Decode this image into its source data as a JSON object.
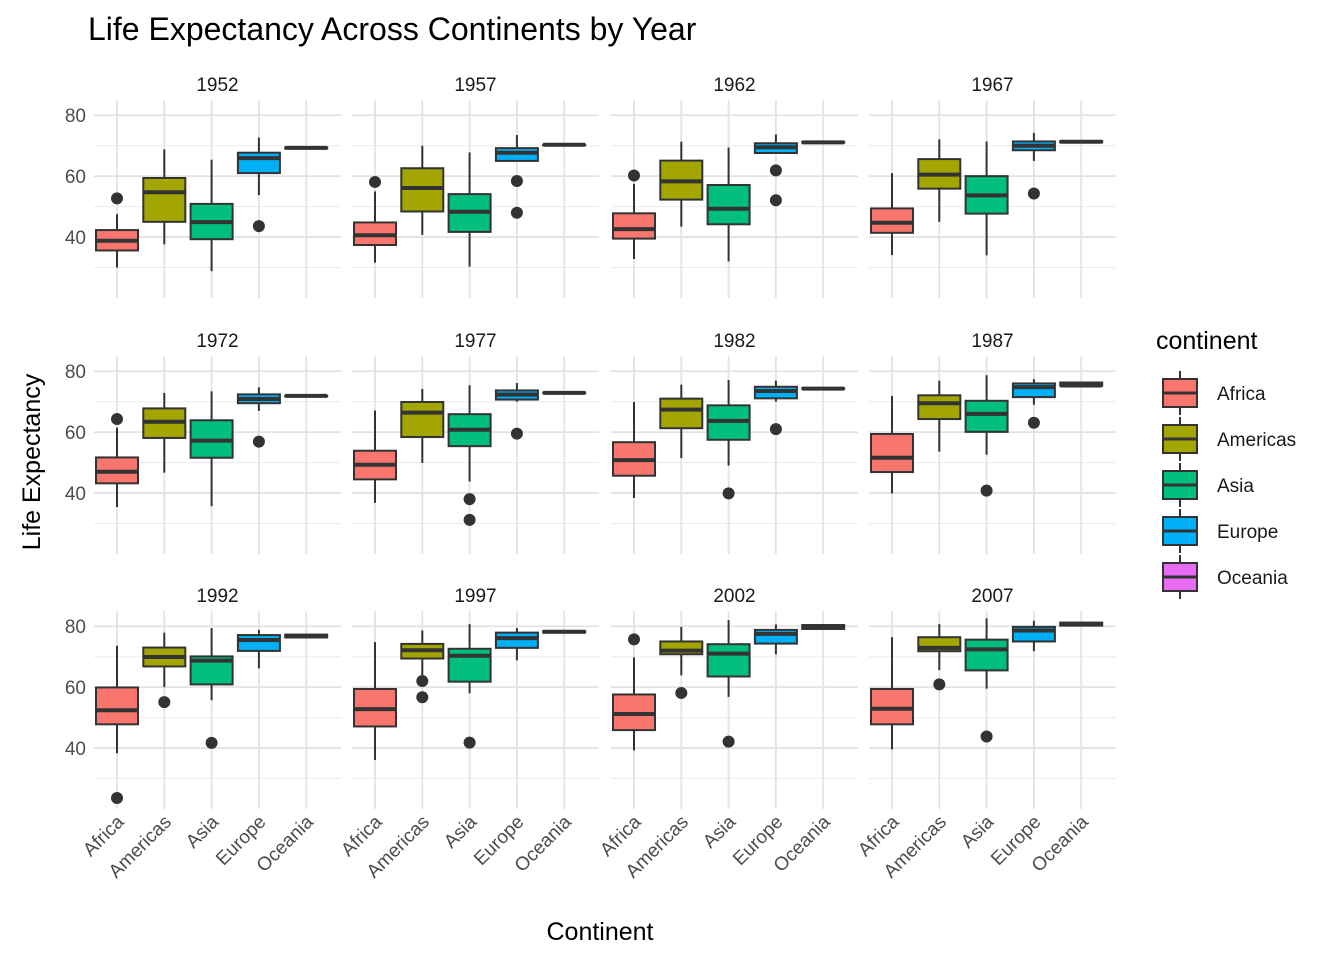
{
  "chart_data": {
    "type": "boxplot",
    "title": "Life Expectancy Across Continents by Year",
    "xlabel": "Continent",
    "ylabel": "Life Expectancy",
    "ylim": [
      20,
      85
    ],
    "y_ticks": [
      40,
      60,
      80
    ],
    "grid": true,
    "legend": {
      "title": "continent",
      "position": "right",
      "entries": [
        {
          "label": "Africa",
          "color": "#F8766D"
        },
        {
          "label": "Americas",
          "color": "#A3A500"
        },
        {
          "label": "Asia",
          "color": "#00BF7D"
        },
        {
          "label": "Europe",
          "color": "#00B0F6"
        },
        {
          "label": "Oceania",
          "color": "#E76BF3"
        }
      ]
    },
    "categories": [
      "Africa",
      "Americas",
      "Asia",
      "Europe",
      "Oceania"
    ],
    "panels": [
      {
        "year": "1952",
        "boxes": [
          {
            "category": "Africa",
            "low": 30.0,
            "q1": 35.6,
            "median": 38.8,
            "q3": 42.3,
            "high": 47.5,
            "outliers": [
              52.7
            ]
          },
          {
            "category": "Americas",
            "low": 37.6,
            "q1": 45.0,
            "median": 54.7,
            "q3": 59.4,
            "high": 68.8,
            "outliers": []
          },
          {
            "category": "Asia",
            "low": 28.8,
            "q1": 39.3,
            "median": 44.9,
            "q3": 50.9,
            "high": 65.4,
            "outliers": []
          },
          {
            "category": "Europe",
            "low": 53.8,
            "q1": 61.0,
            "median": 65.9,
            "q3": 67.7,
            "high": 72.7,
            "outliers": [
              43.6
            ]
          },
          {
            "category": "Oceania",
            "low": 69.1,
            "q1": 69.1,
            "median": 69.3,
            "q3": 69.4,
            "high": 69.4,
            "outliers": []
          }
        ]
      },
      {
        "year": "1957",
        "boxes": [
          {
            "category": "Africa",
            "low": 31.6,
            "q1": 37.4,
            "median": 40.6,
            "q3": 44.8,
            "high": 55.0,
            "outliers": [
              58.1
            ]
          },
          {
            "category": "Americas",
            "low": 40.7,
            "q1": 48.4,
            "median": 56.1,
            "q3": 62.6,
            "high": 70.0,
            "outliers": []
          },
          {
            "category": "Asia",
            "low": 30.3,
            "q1": 41.7,
            "median": 48.3,
            "q3": 54.1,
            "high": 67.8,
            "outliers": []
          },
          {
            "category": "Europe",
            "low": 65.0,
            "q1": 65.0,
            "median": 67.7,
            "q3": 69.2,
            "high": 73.5,
            "outliers": [
              58.4,
              48.0
            ]
          },
          {
            "category": "Oceania",
            "low": 70.3,
            "q1": 70.3,
            "median": 70.3,
            "q3": 70.3,
            "high": 70.3,
            "outliers": []
          }
        ]
      },
      {
        "year": "1962",
        "boxes": [
          {
            "category": "Africa",
            "low": 32.8,
            "q1": 39.5,
            "median": 42.6,
            "q3": 47.8,
            "high": 57.5,
            "outliers": [
              60.2
            ]
          },
          {
            "category": "Americas",
            "low": 43.4,
            "q1": 52.3,
            "median": 58.3,
            "q3": 65.1,
            "high": 71.3,
            "outliers": []
          },
          {
            "category": "Asia",
            "low": 32.0,
            "q1": 44.2,
            "median": 49.3,
            "q3": 57.1,
            "high": 69.4,
            "outliers": []
          },
          {
            "category": "Europe",
            "low": 67.6,
            "q1": 67.6,
            "median": 69.5,
            "q3": 70.8,
            "high": 73.7,
            "outliers": [
              61.9,
              52.1
            ]
          },
          {
            "category": "Oceania",
            "low": 71.0,
            "q1": 71.0,
            "median": 71.1,
            "q3": 71.2,
            "high": 71.2,
            "outliers": []
          }
        ]
      },
      {
        "year": "1967",
        "boxes": [
          {
            "category": "Africa",
            "low": 34.1,
            "q1": 41.4,
            "median": 44.7,
            "q3": 49.4,
            "high": 61.0,
            "outliers": []
          },
          {
            "category": "Americas",
            "low": 45.0,
            "q1": 55.9,
            "median": 60.5,
            "q3": 65.6,
            "high": 72.1,
            "outliers": []
          },
          {
            "category": "Asia",
            "low": 34.0,
            "q1": 47.7,
            "median": 53.7,
            "q3": 60.0,
            "high": 71.4,
            "outliers": []
          },
          {
            "category": "Europe",
            "low": 65.0,
            "q1": 68.5,
            "median": 70.0,
            "q3": 71.4,
            "high": 74.2,
            "outliers": [
              54.3
            ]
          },
          {
            "category": "Oceania",
            "low": 71.1,
            "q1": 71.1,
            "median": 71.3,
            "q3": 71.5,
            "high": 71.5,
            "outliers": []
          }
        ]
      },
      {
        "year": "1972",
        "boxes": [
          {
            "category": "Africa",
            "low": 35.4,
            "q1": 43.2,
            "median": 47.0,
            "q3": 51.7,
            "high": 61.5,
            "outliers": [
              64.3
            ]
          },
          {
            "category": "Americas",
            "low": 46.7,
            "q1": 58.1,
            "median": 63.4,
            "q3": 67.8,
            "high": 72.9,
            "outliers": []
          },
          {
            "category": "Asia",
            "low": 35.7,
            "q1": 51.6,
            "median": 57.2,
            "q3": 63.9,
            "high": 73.4,
            "outliers": []
          },
          {
            "category": "Europe",
            "low": 67.0,
            "q1": 69.5,
            "median": 70.9,
            "q3": 72.4,
            "high": 74.7,
            "outliers": [
              56.9
            ]
          },
          {
            "category": "Oceania",
            "low": 71.9,
            "q1": 71.9,
            "median": 71.9,
            "q3": 71.9,
            "high": 71.9,
            "outliers": []
          }
        ]
      },
      {
        "year": "1977",
        "boxes": [
          {
            "category": "Africa",
            "low": 36.8,
            "q1": 44.5,
            "median": 49.3,
            "q3": 53.9,
            "high": 67.1,
            "outliers": []
          },
          {
            "category": "Americas",
            "low": 49.9,
            "q1": 58.4,
            "median": 66.4,
            "q3": 69.9,
            "high": 74.2,
            "outliers": []
          },
          {
            "category": "Asia",
            "low": 43.8,
            "q1": 55.4,
            "median": 60.8,
            "q3": 65.9,
            "high": 75.4,
            "outliers": [
              38.0,
              31.2
            ]
          },
          {
            "category": "Europe",
            "low": 70.0,
            "q1": 70.7,
            "median": 72.3,
            "q3": 73.7,
            "high": 76.1,
            "outliers": [
              59.5
            ]
          },
          {
            "category": "Oceania",
            "low": 72.8,
            "q1": 72.8,
            "median": 72.9,
            "q3": 73.0,
            "high": 73.0,
            "outliers": []
          }
        ]
      },
      {
        "year": "1982",
        "boxes": [
          {
            "category": "Africa",
            "low": 38.4,
            "q1": 45.7,
            "median": 50.8,
            "q3": 56.7,
            "high": 69.9,
            "outliers": []
          },
          {
            "category": "Americas",
            "low": 51.5,
            "q1": 61.3,
            "median": 67.4,
            "q3": 71.0,
            "high": 75.6,
            "outliers": []
          },
          {
            "category": "Asia",
            "low": 49.0,
            "q1": 57.5,
            "median": 63.7,
            "q3": 68.8,
            "high": 77.1,
            "outliers": [
              39.9
            ]
          },
          {
            "category": "Europe",
            "low": 70.0,
            "q1": 71.1,
            "median": 73.5,
            "q3": 74.9,
            "high": 76.9,
            "outliers": [
              61.0
            ]
          },
          {
            "category": "Oceania",
            "low": 74.3,
            "q1": 74.3,
            "median": 74.3,
            "q3": 74.4,
            "high": 74.4,
            "outliers": []
          }
        ]
      },
      {
        "year": "1987",
        "boxes": [
          {
            "category": "Africa",
            "low": 39.9,
            "q1": 46.9,
            "median": 51.6,
            "q3": 59.4,
            "high": 71.9,
            "outliers": []
          },
          {
            "category": "Americas",
            "low": 53.6,
            "q1": 64.3,
            "median": 69.5,
            "q3": 72.1,
            "high": 76.9,
            "outliers": []
          },
          {
            "category": "Asia",
            "low": 52.6,
            "q1": 60.1,
            "median": 66.0,
            "q3": 70.3,
            "high": 78.7,
            "outliers": [
              40.8
            ]
          },
          {
            "category": "Europe",
            "low": 69.0,
            "q1": 71.5,
            "median": 74.8,
            "q3": 76.0,
            "high": 77.4,
            "outliers": [
              63.1
            ]
          },
          {
            "category": "Oceania",
            "low": 75.3,
            "q1": 75.3,
            "median": 75.3,
            "q3": 76.3,
            "high": 76.3,
            "outliers": []
          }
        ]
      },
      {
        "year": "1992",
        "boxes": [
          {
            "category": "Africa",
            "low": 38.3,
            "q1": 47.8,
            "median": 52.4,
            "q3": 59.9,
            "high": 73.6,
            "outliers": [
              23.6
            ]
          },
          {
            "category": "Americas",
            "low": 60.0,
            "q1": 66.8,
            "median": 69.9,
            "q3": 73.0,
            "high": 77.9,
            "outliers": [
              55.1
            ]
          },
          {
            "category": "Asia",
            "low": 55.7,
            "q1": 60.9,
            "median": 68.7,
            "q3": 70.1,
            "high": 79.4,
            "outliers": [
              41.7
            ]
          },
          {
            "category": "Europe",
            "low": 66.2,
            "q1": 71.9,
            "median": 75.5,
            "q3": 77.1,
            "high": 78.8,
            "outliers": []
          },
          {
            "category": "Oceania",
            "low": 76.3,
            "q1": 76.3,
            "median": 76.9,
            "q3": 77.2,
            "high": 77.2,
            "outliers": []
          }
        ]
      },
      {
        "year": "1997",
        "boxes": [
          {
            "category": "Africa",
            "low": 36.1,
            "q1": 47.1,
            "median": 52.8,
            "q3": 59.4,
            "high": 74.8,
            "outliers": []
          },
          {
            "category": "Americas",
            "low": 64.0,
            "q1": 69.4,
            "median": 72.1,
            "q3": 74.2,
            "high": 78.6,
            "outliers": [
              62.0,
              56.7
            ]
          },
          {
            "category": "Asia",
            "low": 58.0,
            "q1": 61.8,
            "median": 70.3,
            "q3": 72.6,
            "high": 80.7,
            "outliers": [
              41.8
            ]
          },
          {
            "category": "Europe",
            "low": 68.8,
            "q1": 72.9,
            "median": 76.1,
            "q3": 77.9,
            "high": 79.4,
            "outliers": []
          },
          {
            "category": "Oceania",
            "low": 77.9,
            "q1": 77.9,
            "median": 78.2,
            "q3": 78.4,
            "high": 78.4,
            "outliers": []
          }
        ]
      },
      {
        "year": "2002",
        "boxes": [
          {
            "category": "Africa",
            "low": 39.2,
            "q1": 45.9,
            "median": 51.2,
            "q3": 57.6,
            "high": 69.8,
            "outliers": [
              75.7
            ]
          },
          {
            "category": "Americas",
            "low": 63.9,
            "q1": 70.8,
            "median": 72.0,
            "q3": 75.0,
            "high": 79.8,
            "outliers": [
              58.1
            ]
          },
          {
            "category": "Asia",
            "low": 56.8,
            "q1": 63.5,
            "median": 71.0,
            "q3": 74.1,
            "high": 82.0,
            "outliers": [
              42.1
            ]
          },
          {
            "category": "Europe",
            "low": 70.8,
            "q1": 74.3,
            "median": 77.5,
            "q3": 78.8,
            "high": 80.6,
            "outliers": []
          },
          {
            "category": "Oceania",
            "low": 79.1,
            "q1": 79.1,
            "median": 79.7,
            "q3": 80.4,
            "high": 80.4,
            "outliers": []
          }
        ]
      },
      {
        "year": "2007",
        "boxes": [
          {
            "category": "Africa",
            "low": 39.6,
            "q1": 47.8,
            "median": 52.9,
            "q3": 59.4,
            "high": 76.4,
            "outliers": []
          },
          {
            "category": "Americas",
            "low": 65.6,
            "q1": 71.8,
            "median": 72.9,
            "q3": 76.4,
            "high": 80.7,
            "outliers": [
              60.9
            ]
          },
          {
            "category": "Asia",
            "low": 59.5,
            "q1": 65.5,
            "median": 72.4,
            "q3": 75.6,
            "high": 82.6,
            "outliers": [
              43.8
            ]
          },
          {
            "category": "Europe",
            "low": 71.8,
            "q1": 75.0,
            "median": 78.6,
            "q3": 79.8,
            "high": 81.8,
            "outliers": []
          },
          {
            "category": "Oceania",
            "low": 80.2,
            "q1": 80.2,
            "median": 80.7,
            "q3": 81.2,
            "high": 81.2,
            "outliers": []
          }
        ]
      }
    ]
  }
}
